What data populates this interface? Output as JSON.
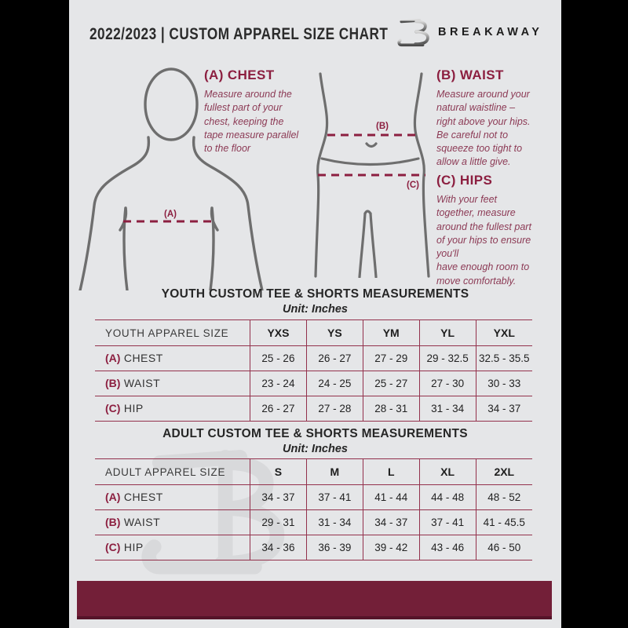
{
  "header": {
    "title": "2022/2023  |  CUSTOM APPAREL SIZE CHART",
    "brand": "BREAKAWAY"
  },
  "sections": {
    "chest": {
      "heading": "(A) CHEST",
      "body": "Measure around the\nfullest part of your\nchest, keeping the\ntape measure parallel\nto the floor"
    },
    "waist": {
      "heading": "(B) WAIST",
      "body": "Measure around your\nnatural waistline –\nright above your hips.\nBe careful not to\nsqueeze too tight to\nallow a little give."
    },
    "hips": {
      "heading": "(C) HIPS",
      "body": "With your feet\ntogether, measure\naround the fullest part\nof your hips to ensure\nyou'll\nhave enough room to\nmove comfortably."
    }
  },
  "diagram_labels": {
    "chest_tag": "(A)",
    "waist_tag": "(B)",
    "hips_tag": "(C)"
  },
  "youth_table": {
    "title": "YOUTH CUSTOM TEE & SHORTS MEASUREMENTS",
    "unit": "Unit: Inches",
    "size_label": "YOUTH APPAREL SIZE",
    "columns": [
      "YXS",
      "YS",
      "YM",
      "YL",
      "YXL"
    ],
    "rows": [
      {
        "prefix": "(A)",
        "label": "CHEST",
        "values": [
          "25 - 26",
          "26 - 27",
          "27 - 29",
          "29 - 32.5",
          "32.5 - 35.5"
        ]
      },
      {
        "prefix": "(B)",
        "label": "WAIST",
        "values": [
          "23 - 24",
          "24 - 25",
          "25 - 27",
          "27 - 30",
          "30 - 33"
        ]
      },
      {
        "prefix": "(C)",
        "label": "HIP",
        "values": [
          "26 - 27",
          "27 - 28",
          "28 - 31",
          "31 - 34",
          "34 - 37"
        ]
      }
    ]
  },
  "adult_table": {
    "title": "ADULT CUSTOM TEE & SHORTS MEASUREMENTS",
    "unit": "Unit: Inches",
    "size_label": "ADULT APPAREL SIZE",
    "columns": [
      "S",
      "M",
      "L",
      "XL",
      "2XL"
    ],
    "rows": [
      {
        "prefix": "(A)",
        "label": "CHEST",
        "values": [
          "34 - 37",
          "37 - 41",
          "41 - 44",
          "44 - 48",
          "48 - 52"
        ]
      },
      {
        "prefix": "(B)",
        "label": "WAIST",
        "values": [
          "29 - 31",
          "31 - 34",
          "34 - 37",
          "37 - 41",
          "41 - 45.5"
        ]
      },
      {
        "prefix": "(C)",
        "label": "HIP",
        "values": [
          "34 - 36",
          "36 - 39",
          "39 - 42",
          "43 - 46",
          "46 - 50"
        ]
      }
    ]
  },
  "colors": {
    "page_background": "#e5e6e8",
    "side_bands": "#000000",
    "maroon_accent": "#8c1f40",
    "maroon_body_text": "#8c3a55",
    "table_border": "#93314c",
    "footer_bar": "#731f38",
    "figure_stroke": "#6e6e6e",
    "watermark": "#d8d9db",
    "dark_text": "#2b2b2b"
  }
}
